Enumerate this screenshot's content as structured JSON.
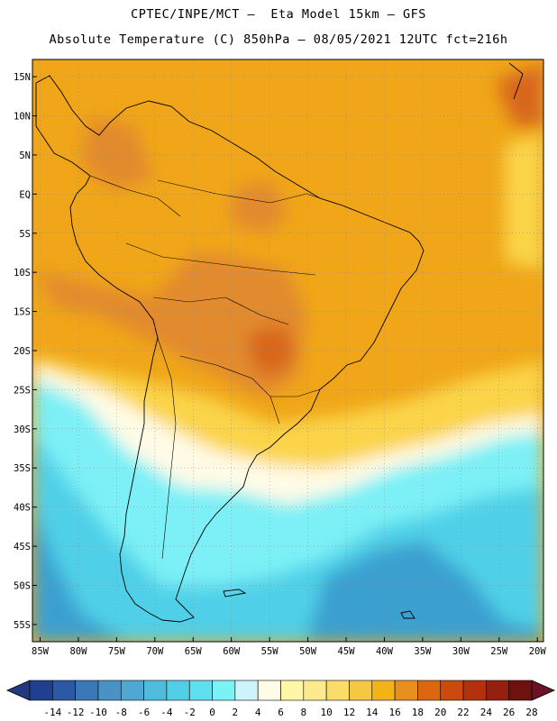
{
  "title_line1": "CPTEC/INPE/MCT –  Eta Model 15km – GFS",
  "title_line2": "Absolute Temperature (C) 850hPa – 08/05/2021 12UTC fct=216h",
  "latitudes": [
    {
      "label": "15N",
      "lat": 15
    },
    {
      "label": "10N",
      "lat": 10
    },
    {
      "label": "5N",
      "lat": 5
    },
    {
      "label": "EQ",
      "lat": 0
    },
    {
      "label": "5S",
      "lat": -5
    },
    {
      "label": "10S",
      "lat": -10
    },
    {
      "label": "15S",
      "lat": -15
    },
    {
      "label": "20S",
      "lat": -20
    },
    {
      "label": "25S",
      "lat": -25
    },
    {
      "label": "30S",
      "lat": -30
    },
    {
      "label": "35S",
      "lat": -35
    },
    {
      "label": "40S",
      "lat": -40
    },
    {
      "label": "45S",
      "lat": -45
    },
    {
      "label": "50S",
      "lat": -50
    },
    {
      "label": "55S",
      "lat": -55
    }
  ],
  "longitudes": [
    {
      "label": "85W",
      "lon": -85
    },
    {
      "label": "80W",
      "lon": -80
    },
    {
      "label": "75W",
      "lon": -75
    },
    {
      "label": "70W",
      "lon": -70
    },
    {
      "label": "65W",
      "lon": -65
    },
    {
      "label": "60W",
      "lon": -60
    },
    {
      "label": "55W",
      "lon": -55
    },
    {
      "label": "50W",
      "lon": -50
    },
    {
      "label": "45W",
      "lon": -45
    },
    {
      "label": "40W",
      "lon": -40
    },
    {
      "label": "35W",
      "lon": -35
    },
    {
      "label": "30W",
      "lon": -30
    },
    {
      "label": "25W",
      "lon": -25
    },
    {
      "label": "20W",
      "lon": -20
    }
  ],
  "colorbar": {
    "labels": [
      "-14",
      "-12",
      "-10",
      "-8",
      "-6",
      "-4",
      "-2",
      "0",
      "2",
      "4",
      "6",
      "8",
      "10",
      "12",
      "14",
      "16",
      "18",
      "20",
      "22",
      "24",
      "26",
      "28"
    ],
    "colors": [
      "#1f3f8f",
      "#2b59a6",
      "#3a78b8",
      "#4a92c4",
      "#4ea8d2",
      "#4fbcde",
      "#50cfe6",
      "#5ee0ee",
      "#7af2f6",
      "#cdf4fb",
      "#fffbe6",
      "#fff7a8",
      "#fde98e",
      "#fadd68",
      "#f5c842",
      "#f2b317",
      "#e8901c",
      "#dd6610",
      "#cc4a0e",
      "#b3310c",
      "#962010",
      "#6e1210"
    ],
    "under_color": "#203a80",
    "over_color": "#6e0f28"
  },
  "legend": {
    "warm_core": "#e28a2d",
    "hot": "#d8661e",
    "warm": "#f0a618",
    "mild": "#fbd44a",
    "cool": "#fffbe6",
    "cold": "#7cf0f6",
    "colder": "#4fd0e8",
    "coldest": "#3aa0d0"
  }
}
